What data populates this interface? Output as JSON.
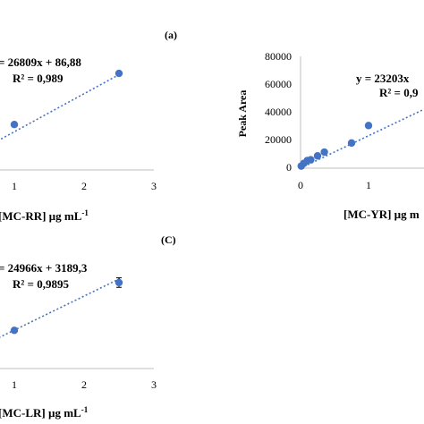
{
  "chart_data": [
    {
      "type": "scatter",
      "panel_label": "(a)",
      "title": "",
      "xlabel": "[MC-RR] µg mL",
      "xlabel_sup": "-1",
      "ylabel": "",
      "x_ticks": [
        "1",
        "2",
        "3"
      ],
      "xlim": [
        0,
        3
      ],
      "ylim": [
        0,
        80000
      ],
      "trendline": {
        "style": "dotted",
        "slope": 26809,
        "intercept": 86.88
      },
      "equation": "= 26809x + 86,88",
      "r_squared": "R² = 0,989",
      "series": [
        {
          "x": [
            0.1,
            1.0,
            2.5
          ],
          "y": [
            2700,
            32000,
            68000
          ],
          "error": [
            0,
            0,
            0
          ]
        }
      ],
      "point_color": "#4472c4"
    },
    {
      "type": "scatter",
      "panel_label": "",
      "title": "",
      "xlabel": "[MC-YR] µg m",
      "ylabel": "Peak Area",
      "x_ticks": [
        "0",
        "1"
      ],
      "y_ticks": [
        "0",
        "20000",
        "40000",
        "60000",
        "80000"
      ],
      "xlim": [
        0,
        2.75
      ],
      "ylim": [
        0,
        80000
      ],
      "trendline": {
        "style": "dotted",
        "slope": 23203,
        "intercept": 0
      },
      "equation": "y = 23203x",
      "r_squared": "R² = 0,9",
      "series": [
        {
          "x": [
            0.01,
            0.05,
            0.1,
            0.15,
            0.25,
            0.35,
            0.75,
            1.0
          ],
          "y": [
            1500,
            3500,
            5500,
            6000,
            8800,
            11500,
            18000,
            30500
          ],
          "error": [
            0,
            0,
            0,
            0,
            0,
            0,
            0,
            0
          ]
        }
      ],
      "point_color": "#4472c4"
    },
    {
      "type": "scatter",
      "panel_label": "(C)",
      "title": "",
      "xlabel": "[MC-LR] µg mL",
      "xlabel_sup": "-1",
      "ylabel": "",
      "x_ticks": [
        "1",
        "2",
        "3"
      ],
      "xlim": [
        0,
        3
      ],
      "ylim": [
        0,
        80000
      ],
      "trendline": {
        "style": "dotted",
        "slope": 24966,
        "intercept": 3189.3
      },
      "equation": "= 24966x + 3189,3",
      "r_squared": "R² = 0,9895",
      "series": [
        {
          "x": [
            0.1,
            1.0,
            2.5
          ],
          "y": [
            7000,
            28000,
            63000
          ],
          "error": [
            0,
            0,
            3500
          ]
        }
      ],
      "point_color": "#4472c4"
    }
  ]
}
